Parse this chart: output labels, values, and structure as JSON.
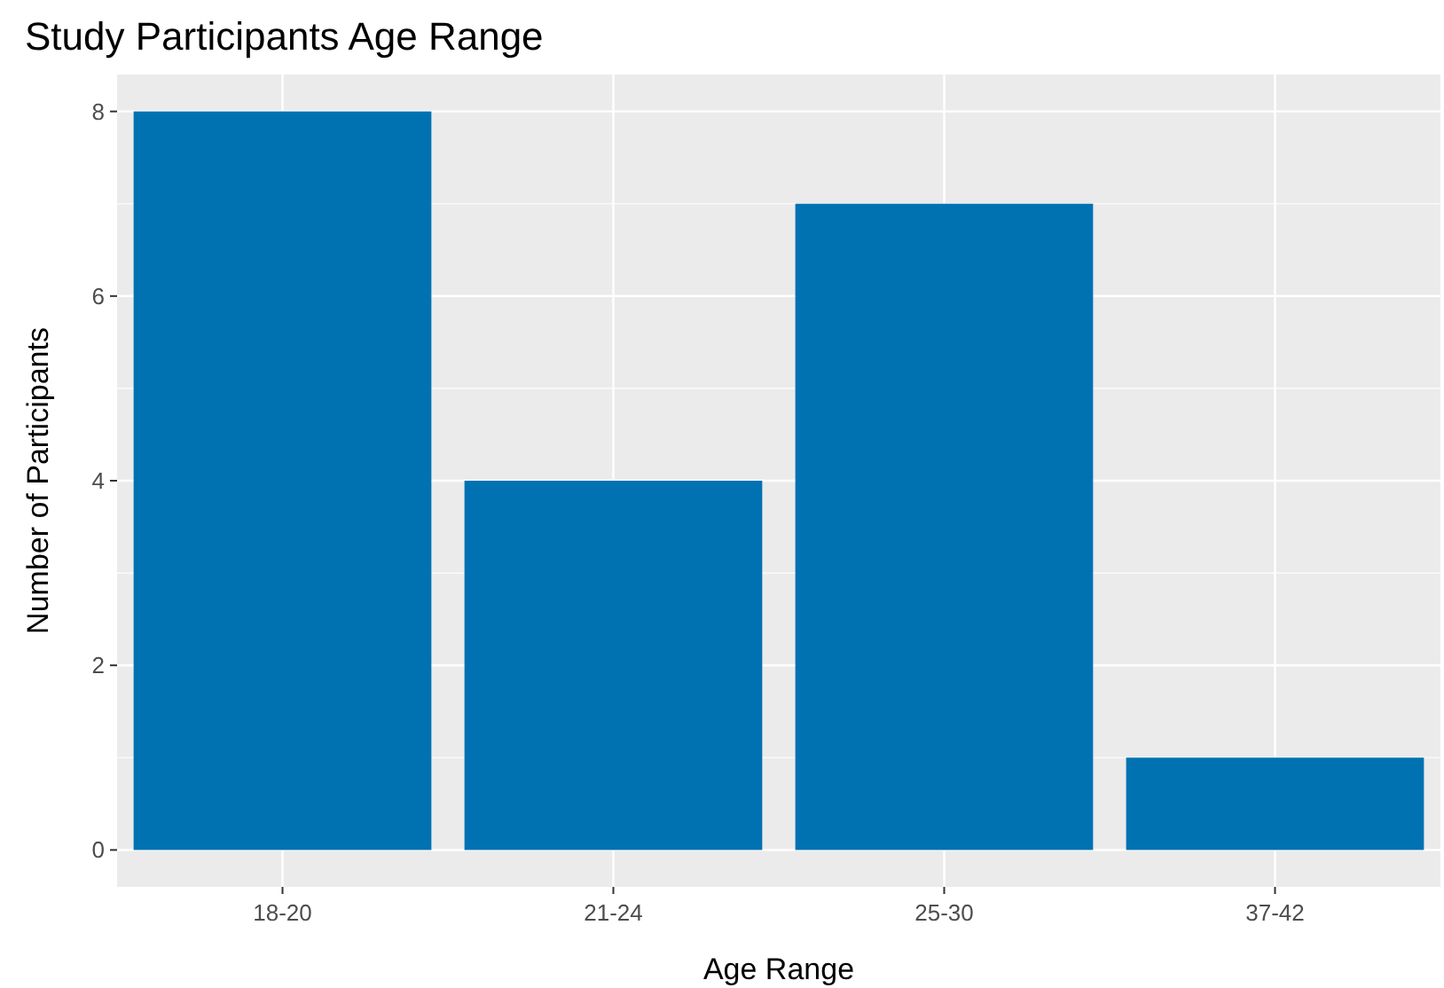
{
  "chart_data": {
    "type": "bar",
    "title": "Study Participants Age Range",
    "xlabel": "Age Range",
    "ylabel": "Number of Participants",
    "categories": [
      "18-20",
      "21-24",
      "25-30",
      "37-42"
    ],
    "values": [
      8,
      4,
      7,
      1
    ],
    "color": "#0072b2",
    "ylim": [
      -0.4,
      8.4
    ],
    "yticks": [
      0,
      2,
      4,
      6,
      8
    ],
    "grid": true
  }
}
